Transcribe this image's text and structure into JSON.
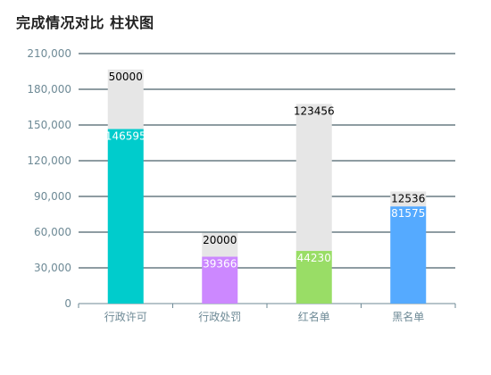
{
  "chart_data": {
    "type": "bar",
    "title": "完成情况对比 柱状图",
    "categories": [
      "行政许可",
      "行政处罚",
      "红名单",
      "黑名单"
    ],
    "series": [
      {
        "values": [
          146595,
          39366,
          44230,
          81575
        ],
        "color": "",
        "colors": [
          "#00cccc",
          "#cc88ff",
          "#99dd66",
          "#55aaff"
        ]
      },
      {
        "values": [
          50000,
          20000,
          123456,
          12536
        ],
        "color": "#e6e6e6"
      }
    ],
    "ylim": [
      0,
      210000
    ],
    "yticks": [
      0,
      30000,
      60000,
      90000,
      120000,
      150000,
      180000,
      210000
    ],
    "ytick_labels": [
      "0",
      "30,000",
      "60,000",
      "90,000",
      "120,000",
      "150,000",
      "180,000",
      "210,000"
    ],
    "grid": true,
    "stacked": true,
    "xlabel": "",
    "ylabel": ""
  },
  "colors": {
    "grid": "#1e3a46",
    "axis": "#6e8a96",
    "tick_text": "#6e8a96",
    "label_on_bar": "#ffffff",
    "label_above_bar": "#000000"
  }
}
